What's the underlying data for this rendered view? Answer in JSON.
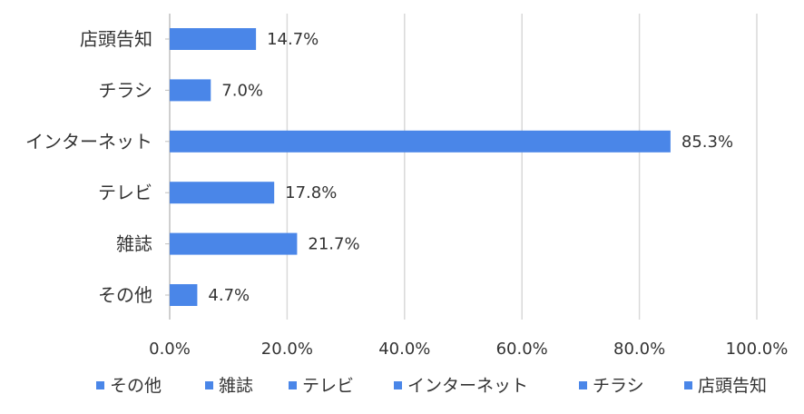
{
  "chart_data": {
    "type": "bar",
    "orientation": "horizontal",
    "title": "",
    "xlabel": "",
    "ylabel": "",
    "categories": [
      "店頭告知",
      "チラシ",
      "インターネット",
      "テレビ",
      "雑誌",
      "その他"
    ],
    "values": [
      14.7,
      7.0,
      85.3,
      17.8,
      21.7,
      4.7
    ],
    "value_labels": [
      "14.7%",
      "7.0%",
      "85.3%",
      "17.8%",
      "21.7%",
      "4.7%"
    ],
    "xlim": [
      0,
      100
    ],
    "x_ticks": [
      0,
      20,
      40,
      60,
      80,
      100
    ],
    "x_tick_labels": [
      "0.0%",
      "20.0%",
      "40.0%",
      "60.0%",
      "80.0%",
      "100.0%"
    ],
    "grid": "vertical",
    "legend_position": "bottom",
    "legend": [
      "その他",
      "雑誌",
      "テレビ",
      "インターネット",
      "チラシ",
      "店頭告知"
    ],
    "bar_color": "#4a86e8",
    "grid_color": "#d9d9d9",
    "text_color": "#333333"
  }
}
